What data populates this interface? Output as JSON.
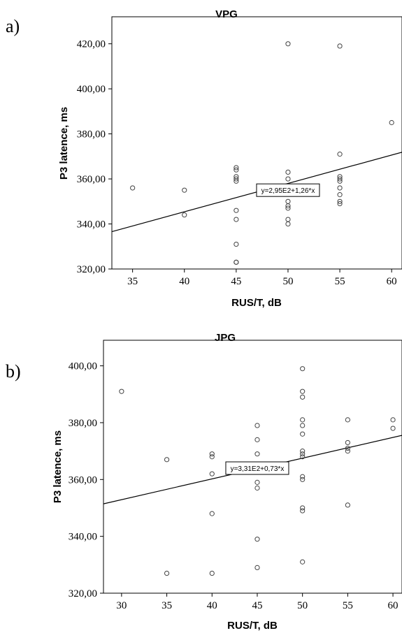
{
  "chart_data": [
    {
      "type": "scatter",
      "panel_label": "a)",
      "title": "VPG",
      "xlabel": "RUS/T, dB",
      "ylabel": "P3 latence, ms",
      "xlim": [
        33,
        61
      ],
      "ylim": [
        320,
        432
      ],
      "x_ticks": [
        35,
        40,
        45,
        50,
        55,
        60
      ],
      "x_tick_labels": [
        "35",
        "40",
        "45",
        "50",
        "55",
        "60"
      ],
      "y_ticks": [
        320,
        340,
        360,
        380,
        400,
        420
      ],
      "y_tick_labels": [
        "320,00",
        "340,00",
        "360,00",
        "380,00",
        "400,00",
        "420,00"
      ],
      "grid": false,
      "fit_line": {
        "intercept": 295,
        "slope": 1.26,
        "label": "y=2,95E2+1,26*x",
        "label_at": [
          50,
          355
        ]
      },
      "points": [
        [
          35,
          356
        ],
        [
          40,
          355
        ],
        [
          40,
          344
        ],
        [
          45,
          365
        ],
        [
          45,
          364
        ],
        [
          45,
          361
        ],
        [
          45,
          360
        ],
        [
          45,
          359
        ],
        [
          45,
          346
        ],
        [
          45,
          342
        ],
        [
          45,
          331
        ],
        [
          45,
          323
        ],
        [
          45,
          323
        ],
        [
          50,
          420
        ],
        [
          50,
          363
        ],
        [
          50,
          360
        ],
        [
          50,
          355
        ],
        [
          50,
          350
        ],
        [
          50,
          348
        ],
        [
          50,
          347
        ],
        [
          50,
          342
        ],
        [
          50,
          340
        ],
        [
          55,
          419
        ],
        [
          55,
          371
        ],
        [
          55,
          361
        ],
        [
          55,
          360
        ],
        [
          55,
          359
        ],
        [
          55,
          356
        ],
        [
          55,
          353
        ],
        [
          55,
          350
        ],
        [
          55,
          349
        ],
        [
          60,
          385
        ]
      ]
    },
    {
      "type": "scatter",
      "panel_label": "b)",
      "title": "JPG",
      "xlabel": "RUS/T, dB",
      "ylabel": "P3 latence, ms",
      "xlim": [
        28,
        61
      ],
      "ylim": [
        320,
        409
      ],
      "x_ticks": [
        30,
        35,
        40,
        45,
        50,
        55,
        60
      ],
      "x_tick_labels": [
        "30",
        "35",
        "40",
        "45",
        "50",
        "55",
        "60"
      ],
      "y_ticks": [
        320,
        340,
        360,
        380,
        400
      ],
      "y_tick_labels": [
        "320,00",
        "340,00",
        "360,00",
        "380,00",
        "400,00"
      ],
      "grid": false,
      "fit_line": {
        "intercept": 331,
        "slope": 0.73,
        "label": "y=3,31E2+0,73*x",
        "label_at": [
          45,
          364
        ]
      },
      "points": [
        [
          30,
          391
        ],
        [
          35,
          367
        ],
        [
          35,
          327
        ],
        [
          40,
          369
        ],
        [
          40,
          368
        ],
        [
          40,
          362
        ],
        [
          40,
          348
        ],
        [
          40,
          327
        ],
        [
          45,
          379
        ],
        [
          45,
          374
        ],
        [
          45,
          369
        ],
        [
          45,
          359
        ],
        [
          45,
          357
        ],
        [
          45,
          339
        ],
        [
          45,
          329
        ],
        [
          50,
          399
        ],
        [
          50,
          391
        ],
        [
          50,
          389
        ],
        [
          50,
          381
        ],
        [
          50,
          379
        ],
        [
          50,
          376
        ],
        [
          50,
          370
        ],
        [
          50,
          369
        ],
        [
          50,
          368
        ],
        [
          50,
          361
        ],
        [
          50,
          360
        ],
        [
          50,
          350
        ],
        [
          50,
          349
        ],
        [
          50,
          331
        ],
        [
          55,
          381
        ],
        [
          55,
          373
        ],
        [
          55,
          371
        ],
        [
          55,
          370
        ],
        [
          55,
          351
        ],
        [
          60,
          381
        ],
        [
          60,
          378
        ]
      ]
    }
  ]
}
